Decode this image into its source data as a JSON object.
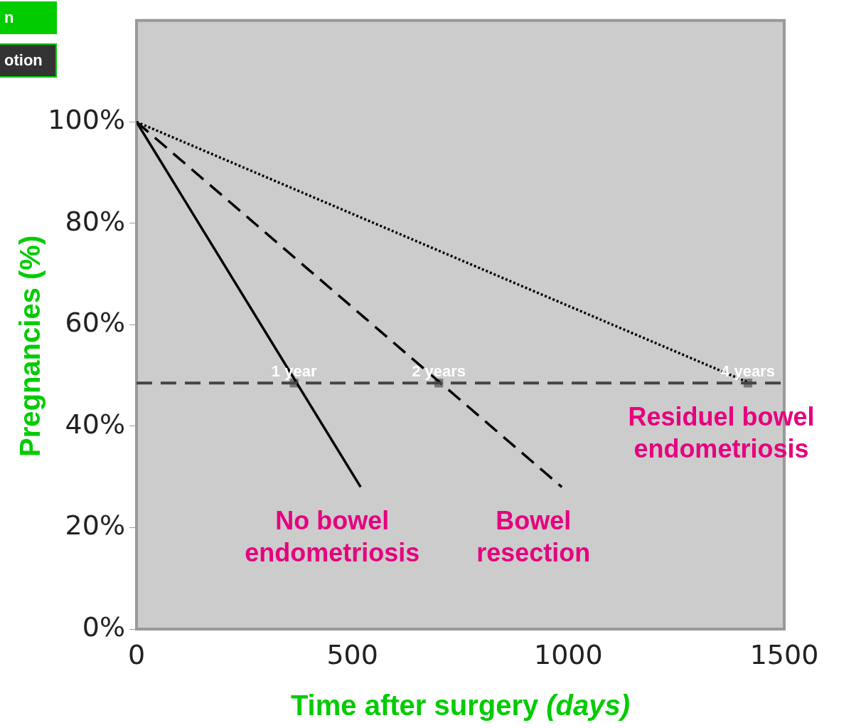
{
  "chart_data": {
    "type": "line",
    "xlabel": "Time after surgery (days)",
    "ylabel": "Pregnancies (%)",
    "xlim": [
      0,
      1500
    ],
    "xticks": [
      0,
      500,
      1000,
      1500
    ],
    "ylim": [
      0,
      120
    ],
    "yticks": [
      {
        "value": 0,
        "label": "0%"
      },
      {
        "value": 20,
        "label": "20%"
      },
      {
        "value": 40,
        "label": "40%"
      },
      {
        "value": 60,
        "label": "60%"
      },
      {
        "value": 80,
        "label": "80%"
      },
      {
        "value": 100,
        "label": "100%"
      }
    ],
    "grid": false,
    "legend": false,
    "marker": "none",
    "series": [
      {
        "name": "No bowel endometriosis",
        "color": "#000000",
        "line_style": "solid",
        "x": [
          0,
          519
        ],
        "values": [
          100,
          28
        ]
      },
      {
        "name": "Bowel resection",
        "color": "#000000",
        "line_style": "dashed",
        "x": [
          0,
          985
        ],
        "values": [
          100,
          28
        ]
      },
      {
        "name": "Residuel bowel endometriosis",
        "color": "#000000",
        "line_style": "dotted",
        "x": [
          0,
          1420
        ],
        "values": [
          100,
          48.5
        ]
      },
      {
        "type": "scatter",
        "marker": "square",
        "color": "#777777",
        "x": [
          365,
          700,
          1416
        ],
        "values": [
          48.5,
          48.5,
          48.5
        ]
      }
    ],
    "ref_lines": [
      {
        "axis": "y",
        "value": 48.5,
        "color": "#444444",
        "line_style": "dashed"
      }
    ],
    "annotations": [
      "n",
      "otion",
      {
        "text": "1 year",
        "x": 365,
        "y": 48.5
      },
      {
        "text": "2 years",
        "x": 700,
        "y": 48.5
      },
      {
        "text": "4 years",
        "x": 1416,
        "y": 48.5
      }
    ]
  }
}
